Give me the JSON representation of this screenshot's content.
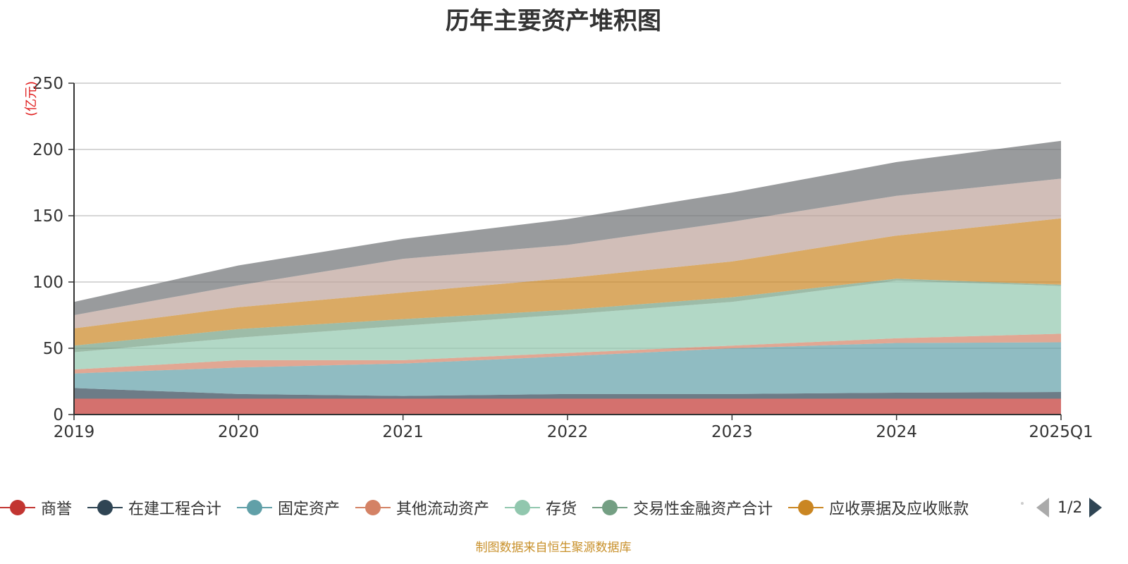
{
  "chart_data": {
    "type": "area",
    "title": "历年主要资产堆积图",
    "unit": "(亿元)",
    "x": [
      "2019",
      "2020",
      "2021",
      "2022",
      "2023",
      "2024",
      "2025Q1"
    ],
    "ylim": [
      0,
      250
    ],
    "yticks": [
      0,
      50,
      100,
      150,
      200,
      250
    ],
    "grid": true,
    "stacked": true,
    "series": [
      {
        "name": "商誉",
        "color": "#c23531",
        "values": [
          12.0,
          12.0,
          12.0,
          12.0,
          12.0,
          12.0,
          12.0
        ]
      },
      {
        "name": "在建工程合计",
        "color": "#2f4554",
        "values": [
          8.0,
          3.5,
          2.0,
          3.5,
          3.5,
          4.5,
          5.0
        ]
      },
      {
        "name": "固定资产",
        "color": "#61a0a8",
        "values": [
          11.0,
          20.0,
          24.5,
          28.5,
          34.5,
          37.5,
          37.5
        ]
      },
      {
        "name": "其他流动资产",
        "color": "#d48265",
        "values": [
          3.0,
          5.5,
          2.5,
          2.5,
          2.0,
          3.5,
          6.5
        ]
      },
      {
        "name": "存货",
        "color": "#91c7ae",
        "values": [
          13.0,
          17.0,
          26.0,
          29.0,
          33.0,
          43.5,
          36.0
        ]
      },
      {
        "name": "交易性金融资产合计",
        "color": "#749f83",
        "values": [
          5.0,
          6.5,
          5.0,
          3.5,
          3.5,
          1.5,
          1.0
        ]
      },
      {
        "name": "应收票据及应收账款",
        "color": "#ca8622",
        "values": [
          13.0,
          16.5,
          20.0,
          24.0,
          27.0,
          32.5,
          50.0
        ]
      },
      {
        "name": "",
        "color": "#bda29a",
        "values": [
          10.0,
          16.5,
          25.5,
          25.0,
          30.0,
          30.0,
          30.0
        ]
      },
      {
        "name": "",
        "color": "#6e7074",
        "values": [
          10.0,
          15.0,
          15.0,
          19.5,
          22.0,
          25.5,
          28.5
        ]
      }
    ]
  },
  "legend": {
    "items": [
      {
        "label": "商誉",
        "color": "#c23531"
      },
      {
        "label": "在建工程合计",
        "color": "#2f4554"
      },
      {
        "label": "固定资产",
        "color": "#61a0a8"
      },
      {
        "label": "其他流动资产",
        "color": "#d48265"
      },
      {
        "label": "存货",
        "color": "#91c7ae"
      },
      {
        "label": "交易性金融资产合计",
        "color": "#749f83"
      },
      {
        "label": "应收票据及应收账款",
        "color": "#ca8622"
      }
    ],
    "page_indicator": "1/2"
  },
  "source_note": "制图数据来自恒生聚源数据库"
}
